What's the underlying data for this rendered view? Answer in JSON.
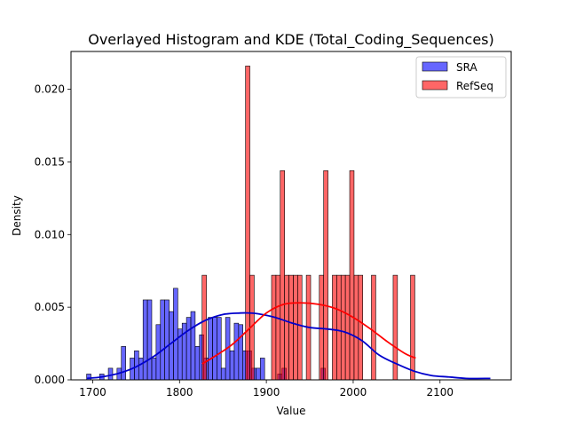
{
  "chart_data": {
    "type": "histogram",
    "title": "Overlayed Histogram and KDE (Total_Coding_Sequences)",
    "xlabel": "Value",
    "ylabel": "Density",
    "xlim": [
      1675,
      2182
    ],
    "ylim": [
      0,
      0.0226
    ],
    "xticks": [
      1700,
      1800,
      1900,
      2000,
      2100
    ],
    "yticks": [
      0.0,
      0.005,
      0.01,
      0.015,
      0.02
    ],
    "ytick_labels": [
      "0.000",
      "0.005",
      "0.010",
      "0.015",
      "0.020"
    ],
    "legend_position": "top-right",
    "grid": false,
    "series": [
      {
        "name": "SRA",
        "color": "#0000ff",
        "kde_color": "#0000cc",
        "bin_edges_start": 1693,
        "bin_width": 5,
        "values": [
          0.0004,
          0,
          0,
          0.0004,
          0,
          0.0008,
          0,
          0.0008,
          0.0023,
          0,
          0.0015,
          0.002,
          0.0015,
          0.0055,
          0.0055,
          0.0015,
          0.0038,
          0.0055,
          0.0055,
          0.0047,
          0.0063,
          0.0035,
          0.0039,
          0.0043,
          0.0047,
          0.0023,
          0.0031,
          0.0015,
          0.0043,
          0.0043,
          0.0043,
          0.0008,
          0.0043,
          0.002,
          0.0039,
          0.0038,
          0.002,
          0.002,
          0.0008,
          0.0008,
          0.0015,
          0,
          0,
          0,
          0.0004,
          0.0008,
          0,
          0,
          0,
          0,
          0,
          0,
          0,
          0,
          0.0008
        ],
        "kde": {
          "x": [
            1693,
            1710,
            1730,
            1750,
            1770,
            1790,
            1810,
            1830,
            1850,
            1870,
            1880,
            1890,
            1910,
            1930,
            1950,
            1970,
            1990,
            2010,
            2030,
            2050,
            2070,
            2090,
            2110,
            2130,
            2158
          ],
          "y": [
            0.0001,
            0.0002,
            0.00045,
            0.0009,
            0.0016,
            0.0025,
            0.0034,
            0.0041,
            0.0045,
            0.0046,
            0.0046,
            0.00455,
            0.0043,
            0.0039,
            0.0036,
            0.0035,
            0.0033,
            0.0027,
            0.0017,
            0.0011,
            0.0006,
            0.0003,
            0.0002,
            0.0001,
            0.0001
          ]
        }
      },
      {
        "name": "RefSeq",
        "color": "#ff0000",
        "kde_color": "#ff0000",
        "bin_edges_start": 1826,
        "bin_width": 5,
        "values": [
          0.0072,
          0,
          0,
          0,
          0,
          0,
          0,
          0,
          0,
          0,
          0.0216,
          0.0072,
          0,
          0,
          0,
          0,
          0.0072,
          0.0072,
          0.0144,
          0.0072,
          0.0072,
          0.0072,
          0.0072,
          0,
          0.0072,
          0,
          0,
          0.0072,
          0.0144,
          0,
          0.0072,
          0.0072,
          0.0072,
          0.0072,
          0.0144,
          0.0072,
          0.0072,
          0,
          0,
          0.0072,
          0,
          0,
          0,
          0,
          0.0072,
          0,
          0,
          0,
          0.0072
        ],
        "kde": {
          "x": [
            1826,
            1840,
            1860,
            1880,
            1900,
            1920,
            1940,
            1960,
            1980,
            2000,
            2020,
            2040,
            2060,
            2072
          ],
          "y": [
            0.0011,
            0.0016,
            0.0024,
            0.0035,
            0.0046,
            0.0052,
            0.0053,
            0.0052,
            0.0049,
            0.0043,
            0.0035,
            0.0026,
            0.0018,
            0.0015
          ]
        }
      }
    ]
  }
}
